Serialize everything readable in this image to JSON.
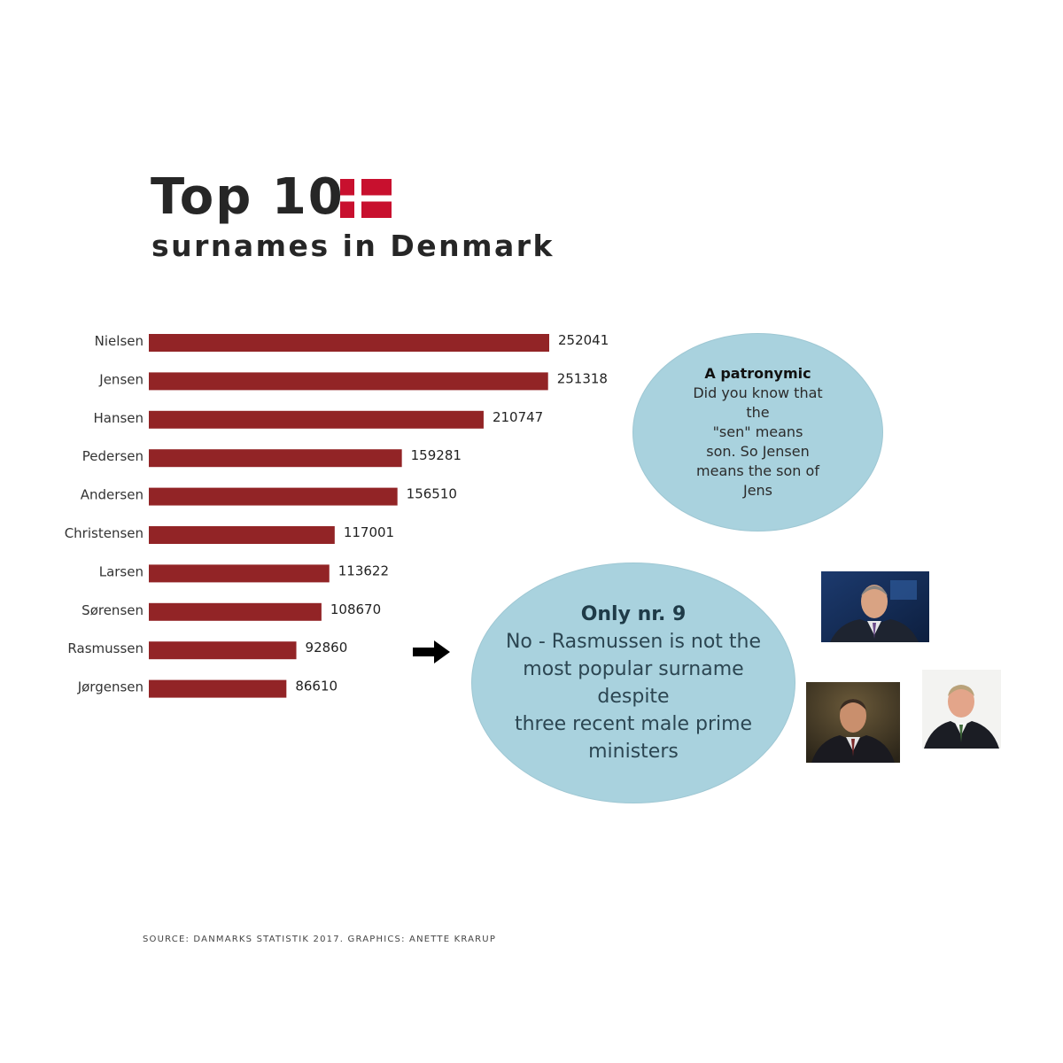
{
  "header": {
    "title": "Top 10",
    "subtitle": "surnames in Denmark"
  },
  "flag": {
    "field_color": "#c8102e",
    "cross_color": "#ffffff"
  },
  "chart_data": {
    "type": "bar",
    "orientation": "horizontal",
    "categories": [
      "Nielsen",
      "Jensen",
      "Hansen",
      "Pedersen",
      "Andersen",
      "Christensen",
      "Larsen",
      "Sørensen",
      "Rasmussen",
      "Jørgensen"
    ],
    "values": [
      252041,
      251318,
      210747,
      159281,
      156510,
      117001,
      113622,
      108670,
      92860,
      86610
    ],
    "value_labels": [
      "252041",
      "251318",
      "210747",
      "159281",
      "156510",
      "117001",
      "113622",
      "108670",
      "92860",
      "86610"
    ],
    "bar_color": "#922426",
    "xlim": [
      0,
      252041
    ],
    "grid": false
  },
  "callout_patronymic": {
    "title": "A patronymic",
    "text": "Did you know that\nthe\n\"sen\" means\nson. So Jensen\nmeans the son of\nJens"
  },
  "callout_rasmussen": {
    "title": "Only nr. 9",
    "text": "No - Rasmussen is not the\nmost popular surname\ndespite\nthree recent male prime\nministers"
  },
  "bubble_color": "#a9d2de",
  "footer": {
    "source": "SOURCE: DANMARKS STATISTIK 2017. GRAPHICS: ANETTE KRARUP"
  }
}
